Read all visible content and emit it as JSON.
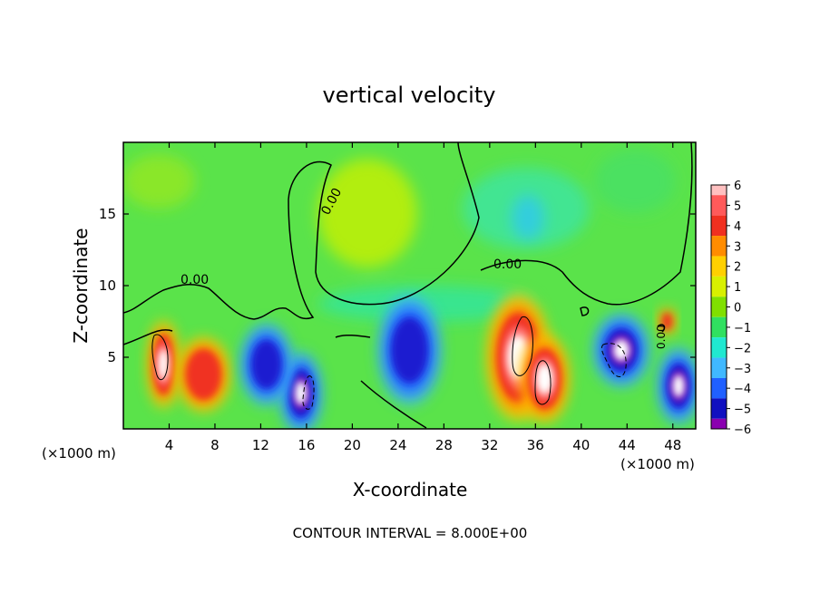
{
  "chart_data": {
    "type": "heatmap",
    "title": "vertical velocity",
    "xlabel": "X-coordinate",
    "ylabel": "Z-coordinate",
    "x_unit_left": "(×1000 m)",
    "x_unit_right": "(×1000 m)",
    "footer": "CONTOUR INTERVAL = 8.000E+00",
    "xlim": [
      0,
      50
    ],
    "ylim": [
      0,
      20
    ],
    "x_ticks": [
      4,
      8,
      12,
      16,
      20,
      24,
      28,
      32,
      36,
      40,
      44,
      48
    ],
    "y_ticks": [
      5,
      10,
      15
    ],
    "contour_labels": [
      "0.00",
      "0.00",
      "0.00",
      "0.00"
    ],
    "colorbar": {
      "levels": [
        6,
        5,
        4,
        3,
        2,
        1,
        0,
        -1,
        -2,
        -3,
        -4,
        -5,
        -6
      ],
      "colors": [
        "#ffc0c0",
        "#ff5a5a",
        "#f03020",
        "#ff8c00",
        "#ffd000",
        "#d8f000",
        "#80e000",
        "#30e060",
        "#20e8d0",
        "#40b8ff",
        "#2060ff",
        "#1010c0",
        "#8a00b0"
      ]
    },
    "field_colors": {
      "background": "#5ae34a",
      "updraft_strong": "#f03020",
      "updraft_core": "#ffffff",
      "downdraft_strong": "#1a1ad0",
      "downdraft_weak": "#40b8ff"
    },
    "features": [
      {
        "type": "updraft",
        "x": 3.5,
        "z": 4.5,
        "peak": 6
      },
      {
        "type": "updraft",
        "x": 7.0,
        "z": 3.8,
        "peak": 4
      },
      {
        "type": "updraft",
        "x": 34.5,
        "z": 5.0,
        "peak": 6
      },
      {
        "type": "updraft",
        "x": 36.8,
        "z": 3.5,
        "peak": 6
      },
      {
        "type": "updraft",
        "x": 47.5,
        "z": 7.5,
        "peak": 4
      },
      {
        "type": "downdraft",
        "x": 15.5,
        "z": 2.5,
        "peak": -6
      },
      {
        "type": "downdraft",
        "x": 25.0,
        "z": 5.5,
        "peak": -5
      },
      {
        "type": "downdraft",
        "x": 43.5,
        "z": 5.5,
        "peak": -6
      },
      {
        "type": "downdraft",
        "x": 48.5,
        "z": 3.0,
        "peak": -6
      },
      {
        "type": "downdraft",
        "x": 12.5,
        "z": 4.5,
        "peak": -4
      }
    ]
  }
}
